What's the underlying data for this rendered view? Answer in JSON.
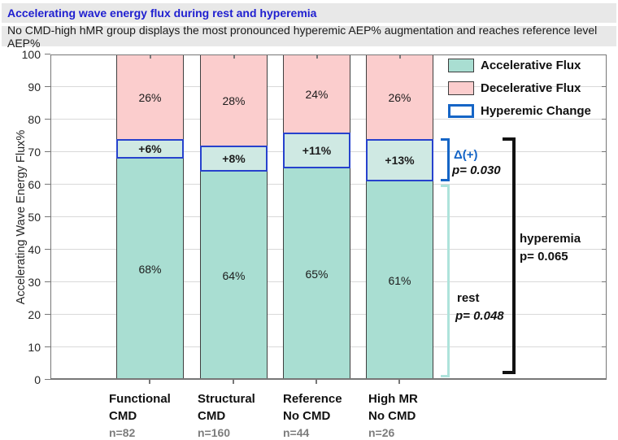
{
  "chart_data": {
    "type": "stacked-bar",
    "title": "Accelerating wave energy flux during rest and hyperemia",
    "subtitle": "No CMD-high hMR group displays the most pronounced hyperemic AEP% augmentation and reaches reference level AEP%",
    "ylabel": "Accelerating Wave Energy Flux%",
    "ylim": [
      0,
      100
    ],
    "yticks": [
      0,
      10,
      20,
      30,
      40,
      50,
      60,
      70,
      80,
      90,
      100
    ],
    "grid": "horizontal-only",
    "legend_position": "top-right-inside",
    "legend": [
      {
        "label": "Accelerative Flux"
      },
      {
        "label": "Decelerative Flux"
      },
      {
        "label": "Hyperemic Change"
      }
    ],
    "series": [
      {
        "name": "Accelerative Flux (rest)",
        "values": [
          68,
          64,
          65,
          61
        ]
      },
      {
        "name": "Hyperemic Change",
        "values": [
          6,
          8,
          11,
          13
        ]
      },
      {
        "name": "Decelerative Flux",
        "values": [
          26,
          28,
          24,
          26
        ]
      }
    ],
    "bars": [
      {
        "category": "Functional CMD",
        "name_line1": "Functional",
        "name_line2": "CMD",
        "n": "n=82",
        "accel": 68,
        "accel_label": "68%",
        "delta": 6,
        "delta_label": "+6%",
        "decel": 26,
        "decel_label": "26%"
      },
      {
        "category": "Structural CMD",
        "name_line1": "Structural",
        "name_line2": "CMD",
        "n": "n=160",
        "accel": 64,
        "accel_label": "64%",
        "delta": 8,
        "delta_label": "+8%",
        "decel": 28,
        "decel_label": "28%"
      },
      {
        "category": "Reference No CMD",
        "name_line1": "Reference",
        "name_line2": "No CMD",
        "n": "n=44",
        "accel": 65,
        "accel_label": "65%",
        "delta": 11,
        "delta_label": "+11%",
        "decel": 24,
        "decel_label": "24%"
      },
      {
        "category": "High MR No CMD",
        "name_line1": "High MR",
        "name_line2": "No CMD",
        "n": "n=26",
        "accel": 61,
        "accel_label": "61%",
        "delta": 13,
        "delta_label": "+13%",
        "decel": 26,
        "decel_label": "26%"
      }
    ],
    "annotations": {
      "delta": {
        "label": "Δ(+)",
        "p": "p= 0.030"
      },
      "hyperemia": {
        "label": "hyperemia",
        "p": "p= 0.065"
      },
      "rest": {
        "label": "rest",
        "p": "p= 0.048"
      }
    }
  },
  "colors": {
    "title_text": "#2020d0",
    "header_bg": "#e8e8e8",
    "accelerative_fill": "#a9ded2",
    "hyperemic_fill": "#cfe9e3",
    "decelerative_fill": "#fbcdcd",
    "hyperemic_border": "#2742cd",
    "legend_blue": "#1565c6",
    "rest_bracket": "#aee3db",
    "bracket_black": "#121212",
    "gridline": "#d9d9d9",
    "axis": "#777777",
    "n_label": "#7d7d7d"
  }
}
